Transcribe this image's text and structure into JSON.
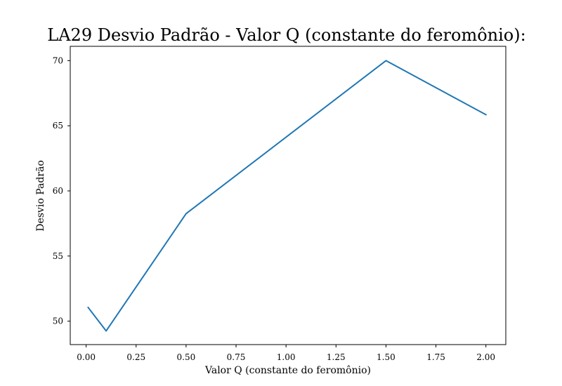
{
  "chart_data": {
    "type": "line",
    "title": "LA29 Desvio Padrão - Valor Q (constante do feromônio):",
    "xlabel": "Valor Q (constante do feromônio)",
    "ylabel": "Desvio Padrão",
    "xlim": [
      -0.0795,
      2.0995
    ],
    "ylim": [
      48.2,
      71.1
    ],
    "xticks": [
      0.0,
      0.25,
      0.5,
      0.75,
      1.0,
      1.25,
      1.5,
      1.75,
      2.0
    ],
    "xtick_labels": [
      "0.00",
      "0.25",
      "0.50",
      "0.75",
      "1.00",
      "1.25",
      "1.50",
      "1.75",
      "2.00"
    ],
    "yticks": [
      50,
      55,
      60,
      65,
      70
    ],
    "ytick_labels": [
      "50",
      "55",
      "60",
      "65",
      "70"
    ],
    "grid": false,
    "series": [
      {
        "color": "#1f77b4",
        "x": [
          0.01,
          0.1,
          0.5,
          1.5,
          2.0
        ],
        "y": [
          51.05,
          49.25,
          58.25,
          70.0,
          65.85
        ]
      }
    ]
  }
}
